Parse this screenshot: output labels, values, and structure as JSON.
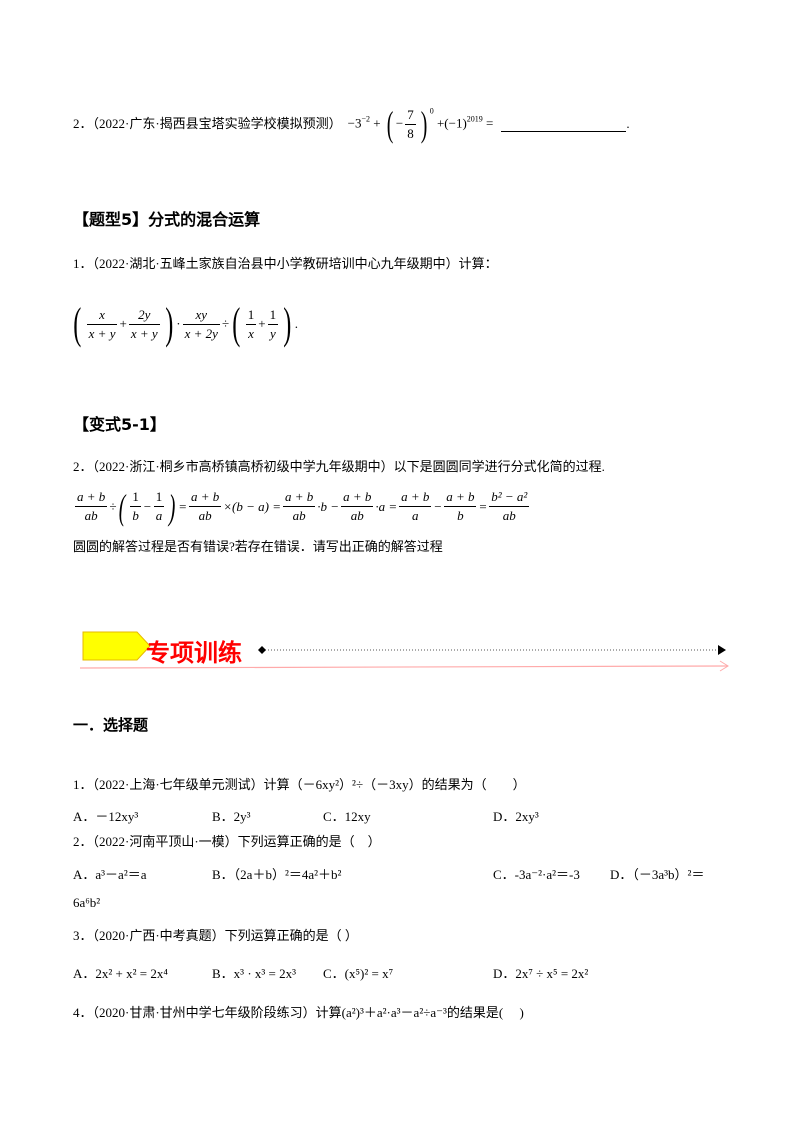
{
  "q2_prev": {
    "text": "2．（2022·广东·揭西县宝塔实验学校模拟预测）",
    "m1": "−3",
    "m1sup": "−2",
    "m2": "+",
    "num": "7",
    "den": "8",
    "minus": "−",
    "sup0": "0",
    "m3": "+(−1)",
    "sup2019": "2019",
    "eq": "=",
    "end": "."
  },
  "section5": {
    "title": "【题型5】分式的混合运算"
  },
  "q5_1": {
    "text": "1．（2022·湖北·五峰土家族自治县中小学教研培训中心九年级期中）计算：",
    "f1n": "x",
    "f1d": "x + y",
    "plus": "+",
    "f2n": "2y",
    "f2d": "x + y",
    "dot": "·",
    "f3n": "xy",
    "f3d": "x + 2y",
    "div": "÷",
    "f4n": "1",
    "f4d": "x",
    "f5n": "1",
    "f5d": "y",
    "end": "."
  },
  "variant": {
    "title": "【变式5-1】"
  },
  "q5_2": {
    "text": "2．（2022·浙江·桐乡市高桥镇高桥初级中学九年级期中）以下是圆圆同学进行分式化简的过程.",
    "a_n": "a + b",
    "a_d": "ab",
    "div": "÷",
    "b_n": "1",
    "b_d": "b",
    "minus": "−",
    "c_n": "1",
    "c_d": "a",
    "eq": "=",
    "times": "×(b − a) =",
    "dotb": "·b −",
    "dota": "·a =",
    "d_d": "a",
    "e_d": "b",
    "res_n": "b² − a²",
    "res_d": "ab",
    "question": "圆圆的解答过程是否有错误?若存在错误．请写出正确的解答过程"
  },
  "banner": {
    "title": "专项训练",
    "box_color": "#ffff00",
    "text_color": "#ff0000"
  },
  "part1": {
    "title": "一．选择题"
  },
  "questions": [
    {
      "stem": "1．（2022·上海·七年级单元测试）计算（－6xy²）²÷（－3xy）的结果为（　　）",
      "options": [
        "A．－12xy³",
        "B．2y³",
        "C．12xy",
        "D．2xy³"
      ]
    },
    {
      "stem": "2．（2022·河南平顶山·一模）下列运算正确的是（　）",
      "options": [
        "A．a³－a²＝a",
        "B．（2a＋b）²＝4a²＋b²",
        "C．-3a⁻²·a²＝-3",
        "D．（－3a³b）²＝"
      ],
      "wrap": "6a⁶b²"
    },
    {
      "stem": "3．（2020·广西·中考真题）下列运算正确的是（ ）",
      "options": [
        "A．2x² + x² = 2x⁴",
        "B．x³ · x³ = 2x³",
        "C．(x⁵)² = x⁷",
        "D．2x⁷ ÷ x⁵ = 2x²"
      ]
    },
    {
      "stem": "4．（2020·甘肃·甘州中学七年级阶段练习）计算(a²)³＋a²·a³－a²÷a⁻³的结果是(　 )"
    }
  ]
}
